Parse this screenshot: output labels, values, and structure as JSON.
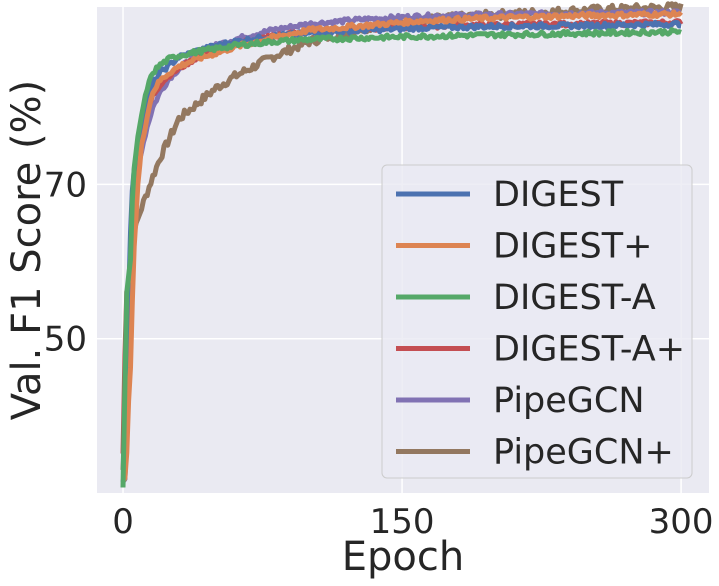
{
  "chart_data": {
    "type": "line",
    "title": "",
    "xlabel": "Epoch",
    "ylabel": "Val. F1 Score (%)",
    "xlim": [
      -14,
      315
    ],
    "ylim": [
      30,
      93
    ],
    "xticks": [
      0,
      150,
      300
    ],
    "xtick_labels": [
      "0",
      "150",
      "300"
    ],
    "yticks": [
      50,
      70
    ],
    "ytick_labels": [
      "50",
      "70"
    ],
    "grid": true,
    "legend_position": "center-right",
    "series": [
      {
        "name": "DIGEST",
        "color": "#4c72b0",
        "points": [
          [
            0,
            31.5
          ],
          [
            1,
            32
          ],
          [
            2,
            38
          ],
          [
            3,
            55
          ],
          [
            4,
            64
          ],
          [
            5,
            69
          ],
          [
            6,
            72
          ],
          [
            8,
            75
          ],
          [
            10,
            78
          ],
          [
            13,
            81
          ],
          [
            16,
            83
          ],
          [
            20,
            84.5
          ],
          [
            25,
            85.5
          ],
          [
            30,
            86.5
          ],
          [
            40,
            87.3
          ],
          [
            50,
            88
          ],
          [
            60,
            88.5
          ],
          [
            80,
            89.2
          ],
          [
            100,
            89.6
          ],
          [
            130,
            90
          ],
          [
            160,
            90.3
          ],
          [
            200,
            90.5
          ],
          [
            250,
            90.6
          ],
          [
            300,
            90.8
          ]
        ]
      },
      {
        "name": "DIGEST+",
        "color": "#dd8452",
        "points": [
          [
            0,
            31.2
          ],
          [
            1,
            32
          ],
          [
            2,
            35
          ],
          [
            3,
            42
          ],
          [
            4,
            46
          ],
          [
            5,
            55
          ],
          [
            6,
            62
          ],
          [
            8,
            70
          ],
          [
            10,
            75
          ],
          [
            13,
            79
          ],
          [
            16,
            82
          ],
          [
            20,
            83.5
          ],
          [
            25,
            84.5
          ],
          [
            30,
            85.3
          ],
          [
            40,
            86.3
          ],
          [
            50,
            87
          ],
          [
            60,
            87.8
          ],
          [
            80,
            89
          ],
          [
            100,
            90
          ],
          [
            130,
            90.6
          ],
          [
            160,
            91.2
          ],
          [
            200,
            91.6
          ],
          [
            250,
            91.9
          ],
          [
            300,
            92.1
          ]
        ]
      },
      {
        "name": "DIGEST-A",
        "color": "#55a868",
        "points": [
          [
            0,
            31
          ],
          [
            1,
            44
          ],
          [
            2,
            56
          ],
          [
            3,
            58
          ],
          [
            4,
            60
          ],
          [
            5,
            68
          ],
          [
            6,
            72
          ],
          [
            8,
            76
          ],
          [
            10,
            79
          ],
          [
            13,
            82.5
          ],
          [
            16,
            84.5
          ],
          [
            20,
            85.5
          ],
          [
            25,
            86.3
          ],
          [
            30,
            86.7
          ],
          [
            40,
            87.2
          ],
          [
            50,
            87.6
          ],
          [
            60,
            88
          ],
          [
            80,
            88.5
          ],
          [
            100,
            88.8
          ],
          [
            130,
            89
          ],
          [
            160,
            89.2
          ],
          [
            200,
            89.4
          ],
          [
            250,
            89.6
          ],
          [
            300,
            89.8
          ]
        ]
      },
      {
        "name": "DIGEST-A+",
        "color": "#c44e52",
        "points": [
          [
            0,
            35
          ],
          [
            1,
            48
          ],
          [
            2,
            56
          ],
          [
            3,
            55
          ],
          [
            4,
            58
          ],
          [
            5,
            66
          ],
          [
            6,
            70
          ],
          [
            8,
            74
          ],
          [
            10,
            77
          ],
          [
            13,
            79.5
          ],
          [
            16,
            81.5
          ],
          [
            20,
            83
          ],
          [
            25,
            84.2
          ],
          [
            30,
            85
          ],
          [
            40,
            86.5
          ],
          [
            50,
            87.5
          ],
          [
            60,
            88.2
          ],
          [
            80,
            89.2
          ],
          [
            100,
            89.8
          ],
          [
            130,
            90.2
          ],
          [
            160,
            90.5
          ],
          [
            200,
            90.7
          ],
          [
            250,
            90.8
          ],
          [
            300,
            91
          ]
        ]
      },
      {
        "name": "PipeGCN",
        "color": "#8172b3",
        "points": [
          [
            0,
            31.5
          ],
          [
            1,
            33
          ],
          [
            2,
            40
          ],
          [
            3,
            55
          ],
          [
            4,
            62
          ],
          [
            5,
            66
          ],
          [
            6,
            69
          ],
          [
            8,
            72
          ],
          [
            10,
            74.5
          ],
          [
            13,
            77.5
          ],
          [
            16,
            80
          ],
          [
            20,
            82
          ],
          [
            25,
            83.8
          ],
          [
            30,
            85
          ],
          [
            40,
            86.8
          ],
          [
            50,
            88
          ],
          [
            60,
            88.8
          ],
          [
            80,
            90
          ],
          [
            100,
            90.8
          ],
          [
            130,
            91.4
          ],
          [
            160,
            91.8
          ],
          [
            200,
            92
          ],
          [
            250,
            92.2
          ],
          [
            300,
            92.3
          ]
        ]
      },
      {
        "name": "PipeGCN+",
        "color": "#937860",
        "points": [
          [
            0,
            33
          ],
          [
            1,
            40
          ],
          [
            2,
            46
          ],
          [
            3,
            52
          ],
          [
            4,
            58
          ],
          [
            5,
            62
          ],
          [
            6,
            64
          ],
          [
            8,
            65.5
          ],
          [
            10,
            67
          ],
          [
            13,
            69
          ],
          [
            16,
            71
          ],
          [
            20,
            73.5
          ],
          [
            25,
            76
          ],
          [
            30,
            78.5
          ],
          [
            40,
            80.5
          ],
          [
            50,
            82.5
          ],
          [
            60,
            84
          ],
          [
            80,
            86.5
          ],
          [
            100,
            88.5
          ],
          [
            130,
            90.3
          ],
          [
            160,
            91.3
          ],
          [
            200,
            92
          ],
          [
            250,
            92.6
          ],
          [
            300,
            93
          ]
        ]
      }
    ]
  }
}
